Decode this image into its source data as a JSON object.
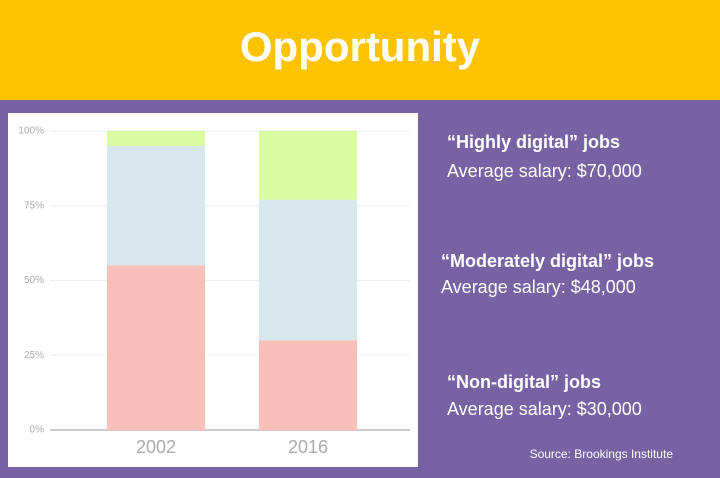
{
  "title": "Opportunity",
  "source": "Source: Brookings Institute",
  "chart_data": {
    "type": "stacked-bar",
    "categories": [
      "2002",
      "2016"
    ],
    "series": [
      {
        "name": "“Non-digital” jobs",
        "salary": "Average salary: $30,000",
        "color": "#f8bfb8",
        "values": [
          55,
          30
        ]
      },
      {
        "name": "“Moderately digital” jobs",
        "salary": "Average salary: $48,000",
        "color": "#d9e7ec",
        "values": [
          40,
          47
        ]
      },
      {
        "name": "“Highly digital” jobs",
        "salary": "Average salary: $70,000",
        "color": "#dafba0",
        "values": [
          5,
          23
        ]
      }
    ],
    "ylim": [
      0,
      100
    ],
    "yticks": [
      {
        "value": 0,
        "label": "0%"
      },
      {
        "value": 25,
        "label": "25%"
      },
      {
        "value": 50,
        "label": "50%"
      },
      {
        "value": 75,
        "label": "75%"
      },
      {
        "value": 100,
        "label": "100%"
      }
    ],
    "grid": true
  }
}
